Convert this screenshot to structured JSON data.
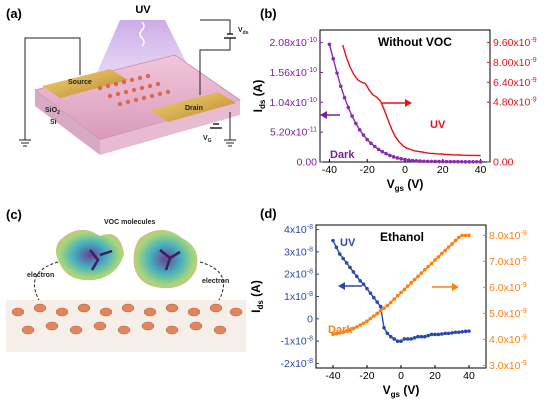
{
  "panels": {
    "a": {
      "label": "(a)",
      "uv": "UV",
      "vds": "V",
      "vds_sub": "ds",
      "vg": "V",
      "vg_sub": "G",
      "source": "Source",
      "drain": "Drain",
      "sio2": "SiO",
      "sio2_sub": "2",
      "si": "Si"
    },
    "c": {
      "label": "(c)",
      "voc": "VOC molecules",
      "electron_left": "electron",
      "electron_right": "electron"
    }
  },
  "chart_data": [
    {
      "panel": "(b)",
      "type": "line",
      "title": "Without VOC",
      "xlabel": "V",
      "xlabel_sub": "gs",
      "xlabel_unit": " (V)",
      "ylabel": "I",
      "ylabel_sub": "ds",
      "ylabel_unit": " (A)",
      "xlim": [
        -45,
        45
      ],
      "ylim": [
        0,
        2.3e-10
      ],
      "y2lim": [
        0,
        1.06e-08
      ],
      "xticks": [
        "-40",
        "-20",
        "0",
        "20",
        "40"
      ],
      "yticks": [
        {
          "v": 0,
          "label": "0.00"
        },
        {
          "v": 5.2e-11,
          "label": "5.20x10",
          "exp": "-11"
        },
        {
          "v": 1.04e-10,
          "label": "1.04x10",
          "exp": "-10"
        },
        {
          "v": 1.56e-10,
          "label": "1.56x10",
          "exp": "-10"
        },
        {
          "v": 2.08e-10,
          "label": "2.08x10",
          "exp": "-10"
        }
      ],
      "y2ticks": [
        {
          "v": 0,
          "label": "0.00"
        },
        {
          "v": 4.8e-09,
          "label": "4.80x10",
          "exp": "-9"
        },
        {
          "v": 6.4e-09,
          "label": "6.40x10",
          "exp": "-9"
        },
        {
          "v": 8e-09,
          "label": "8.00x10",
          "exp": "-9"
        },
        {
          "v": 9.6e-09,
          "label": "9.60x10",
          "exp": "-9"
        }
      ],
      "series": [
        {
          "name": "Dark",
          "axis": "left",
          "color": "#8a2bb0",
          "marker": true,
          "x": [
            -40,
            -38,
            -36,
            -34,
            -32,
            -30,
            -28,
            -26,
            -24,
            -22,
            -20,
            -18,
            -16,
            -14,
            -12,
            -10,
            -8,
            -6,
            -4,
            -2,
            0,
            2,
            4,
            6,
            8,
            10,
            12,
            14,
            16,
            18,
            20,
            22,
            24,
            26,
            28,
            30,
            32,
            34,
            36,
            38,
            40
          ],
          "y": [
            2.05e-10,
            1.8e-10,
            1.55e-10,
            1.32e-10,
            1.12e-10,
            9.5e-11,
            8e-11,
            6.7e-11,
            5.6e-11,
            4.7e-11,
            3.9e-11,
            3.25e-11,
            2.7e-11,
            2.2e-11,
            1.8e-11,
            1.45e-11,
            1.15e-11,
            9e-12,
            7e-12,
            5.5e-12,
            4.2e-12,
            3.2e-12,
            2.5e-12,
            2e-12,
            1.6e-12,
            1.3e-12,
            1.1e-12,
            1e-12,
            9e-13,
            8e-13,
            7e-13,
            6.5e-13,
            6e-13,
            5.5e-13,
            5e-13,
            4.5e-13,
            4e-13,
            4e-13,
            3.5e-13,
            3.5e-13,
            3e-13
          ]
        },
        {
          "name": "UV",
          "axis": "right",
          "color": "#e8111a",
          "marker": false,
          "x": [
            -33,
            -31,
            -29,
            -27,
            -25,
            -23,
            -21,
            -19,
            -17,
            -15,
            -13,
            -11,
            -9,
            -7,
            -5,
            -3,
            -1,
            1,
            3,
            5,
            7,
            9,
            11,
            13,
            15,
            17,
            19,
            21,
            23,
            25,
            27,
            29,
            31,
            33,
            35,
            37,
            39,
            40
          ],
          "y": [
            9.4e-09,
            8.4e-09,
            7.6e-09,
            7e-09,
            6.6e-09,
            6.4e-09,
            6.3e-09,
            5.8e-09,
            5.4e-09,
            5.2e-09,
            4.9e-09,
            4.2e-09,
            3.4e-09,
            2.6e-09,
            2e-09,
            1.6e-09,
            1.3e-09,
            1.1e-09,
            1e-09,
            9e-10,
            8.5e-10,
            8e-10,
            7.5e-10,
            7e-10,
            6.8e-10,
            6.6e-10,
            6.4e-10,
            6.2e-10,
            6e-10,
            5.8e-10,
            5.7e-10,
            5.6e-10,
            5.5e-10,
            5.4e-10,
            5.3e-10,
            5.3e-10,
            5.2e-10,
            5.2e-10
          ]
        }
      ],
      "annotations": {
        "dark": "Dark",
        "uv": "UV"
      }
    },
    {
      "panel": "(d)",
      "type": "line",
      "title": "Ethanol",
      "xlabel": "V",
      "xlabel_sub": "gs",
      "xlabel_unit": " (V)",
      "ylabel": "I",
      "ylabel_sub": "ds",
      "ylabel_unit": " (A)",
      "xlim": [
        -50,
        50
      ],
      "ylim": [
        -2.2e-08,
        4.2e-08
      ],
      "y2lim": [
        2.9e-09,
        8.4e-09
      ],
      "xticks": [
        "-40",
        "-20",
        "0",
        "20",
        "40"
      ],
      "yticks": [
        {
          "v": -2e-08,
          "label": "-2x10",
          "exp": "-8"
        },
        {
          "v": -1e-08,
          "label": "-1x10",
          "exp": "-8"
        },
        {
          "v": 0,
          "label": "0"
        },
        {
          "v": 1e-08,
          "label": "1x10",
          "exp": "-8"
        },
        {
          "v": 2e-08,
          "label": "2x10",
          "exp": "-8"
        },
        {
          "v": 3e-08,
          "label": "3x10",
          "exp": "-8"
        },
        {
          "v": 4e-08,
          "label": "4x10",
          "exp": "-8"
        }
      ],
      "y2ticks": [
        {
          "v": 3e-09,
          "label": "3.0x10",
          "exp": "-9"
        },
        {
          "v": 4e-09,
          "label": "4.0x10",
          "exp": "-9"
        },
        {
          "v": 5e-09,
          "label": "5.0x10",
          "exp": "-9"
        },
        {
          "v": 6e-09,
          "label": "6.0x10",
          "exp": "-9"
        },
        {
          "v": 7e-09,
          "label": "7.0x10",
          "exp": "-9"
        },
        {
          "v": 8e-09,
          "label": "8.0x10",
          "exp": "-9"
        }
      ],
      "series": [
        {
          "name": "UV",
          "axis": "left",
          "color": "#2b4aa8",
          "marker": true,
          "x": [
            -40,
            -38,
            -36,
            -34,
            -32,
            -30,
            -28,
            -26,
            -24,
            -22,
            -20,
            -18,
            -16,
            -14,
            -12,
            -10,
            -8,
            -6,
            -4,
            -2,
            0,
            2,
            4,
            6,
            8,
            10,
            12,
            14,
            16,
            18,
            20,
            22,
            24,
            26,
            28,
            30,
            32,
            34,
            36,
            38,
            40
          ],
          "y": [
            3.5e-08,
            3.2e-08,
            2.9e-08,
            2.7e-08,
            2.5e-08,
            2.3e-08,
            2.1e-08,
            1.9e-08,
            1.7e-08,
            1.55e-08,
            1.35e-08,
            1.15e-08,
            9.5e-09,
            7.5e-09,
            5.5e-09,
            -4e-09,
            -6.5e-09,
            -8e-09,
            -9e-09,
            -1e-08,
            -1e-08,
            -9e-09,
            -9e-09,
            -9e-09,
            -8.5e-09,
            -8e-09,
            -8e-09,
            -8e-09,
            -7.5e-09,
            -7e-09,
            -7e-09,
            -7e-09,
            -6.8e-09,
            -6.5e-09,
            -6.5e-09,
            -6.3e-09,
            -6e-09,
            -6e-09,
            -5.8e-09,
            -5.6e-09,
            -5.5e-09
          ]
        },
        {
          "name": "Dark",
          "axis": "right",
          "color": "#ff7f0e",
          "marker": true,
          "x": [
            -40,
            -38,
            -36,
            -34,
            -32,
            -30,
            -28,
            -26,
            -24,
            -22,
            -20,
            -18,
            -16,
            -14,
            -12,
            -10,
            -8,
            -6,
            -4,
            -2,
            0,
            2,
            4,
            6,
            8,
            10,
            12,
            14,
            16,
            18,
            20,
            22,
            24,
            26,
            28,
            30,
            32,
            34,
            36,
            38,
            40
          ],
          "y": [
            4.2e-09,
            4.22e-09,
            4.25e-09,
            4.28e-09,
            4.32e-09,
            4.36e-09,
            4.42e-09,
            4.48e-09,
            4.55e-09,
            4.62e-09,
            4.7e-09,
            4.8e-09,
            4.9e-09,
            5e-09,
            5.1e-09,
            5.2e-09,
            5.3e-09,
            5.42e-09,
            5.55e-09,
            5.68e-09,
            5.8e-09,
            5.92e-09,
            6.05e-09,
            6.18e-09,
            6.3e-09,
            6.42e-09,
            6.55e-09,
            6.68e-09,
            6.8e-09,
            6.92e-09,
            7.05e-09,
            7.17e-09,
            7.3e-09,
            7.42e-09,
            7.55e-09,
            7.67e-09,
            7.8e-09,
            7.92e-09,
            8e-09,
            8e-09,
            8e-09
          ]
        }
      ],
      "annotations": {
        "uv": "UV",
        "dark": "Dark"
      }
    }
  ],
  "colors": {
    "left_b": "#7b1fa2",
    "right_b": "#e8111a",
    "left_d": "#2b4aa8",
    "right_d": "#ff7f0e"
  }
}
